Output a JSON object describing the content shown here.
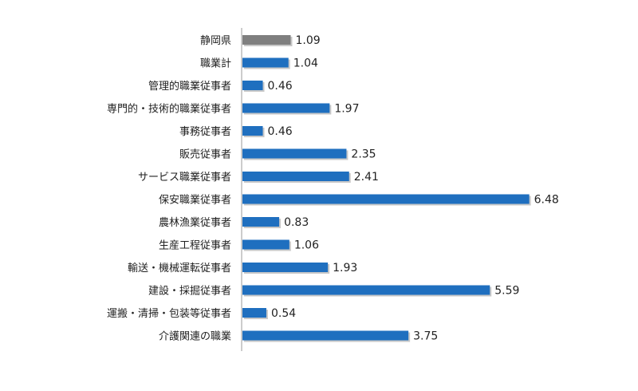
{
  "chart_data": {
    "type": "bar",
    "orientation": "horizontal",
    "categories": [
      "静岡県",
      "職業計",
      "管理的職業従事者",
      "専門的・技術的職業従事者",
      "事務従事者",
      "販売従事者",
      "サービス職業従事者",
      "保安職業従事者",
      "農林漁業従事者",
      "生産工程従事者",
      "輸送・機械運転従事者",
      "建設・採掘従事者",
      "運搬・清掃・包装等従事者",
      "介護関連の職業"
    ],
    "values": [
      1.09,
      1.04,
      0.46,
      1.97,
      0.46,
      2.35,
      2.41,
      6.48,
      0.83,
      1.06,
      1.93,
      5.59,
      0.54,
      3.75
    ],
    "value_labels": [
      "1.09",
      "1.04",
      "0.46",
      "1.97",
      "0.46",
      "2.35",
      "2.41",
      "6.48",
      "0.83",
      "1.06",
      "1.93",
      "5.59",
      "0.54",
      "3.75"
    ],
    "bar_colors": [
      "#7f7f7f",
      "#1f6fbf",
      "#1f6fbf",
      "#1f6fbf",
      "#1f6fbf",
      "#1f6fbf",
      "#1f6fbf",
      "#1f6fbf",
      "#1f6fbf",
      "#1f6fbf",
      "#1f6fbf",
      "#1f6fbf",
      "#1f6fbf",
      "#1f6fbf"
    ],
    "xlim": [
      0,
      7
    ],
    "grid": false,
    "legend": "none"
  }
}
